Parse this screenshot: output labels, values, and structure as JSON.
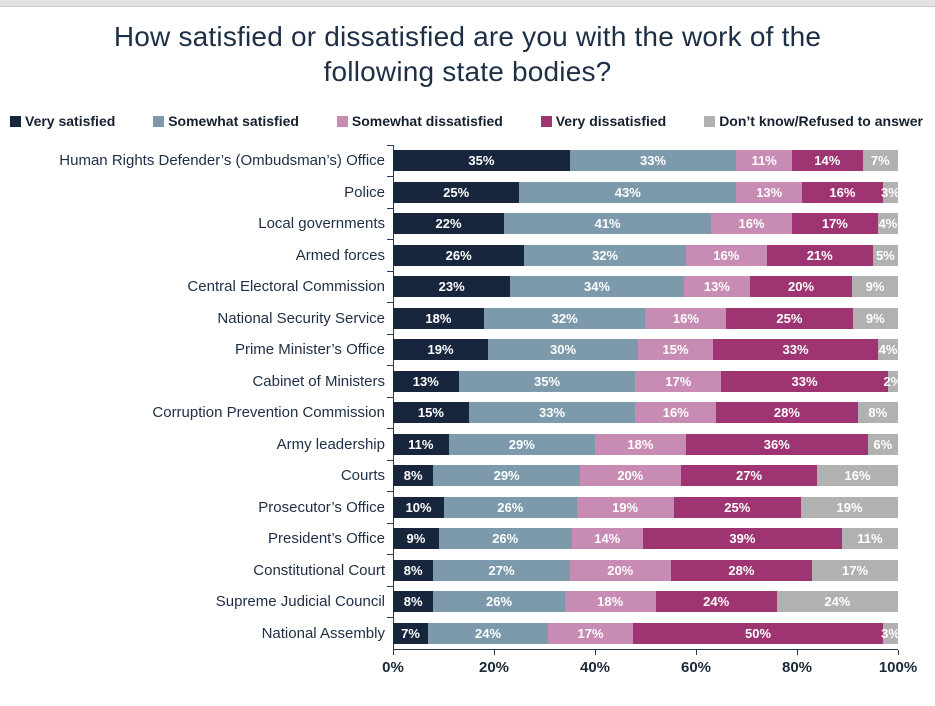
{
  "header": {
    "title_line1": "How satisfied or dissatisfied are you with the work of the",
    "title_line2": "following state bodies?"
  },
  "chart_data": {
    "type": "bar",
    "subtype": "horizontal-stacked",
    "title": "How satisfied or dissatisfied are you with the work of the following state bodies?",
    "value_suffix": "%",
    "xlim": [
      0,
      100
    ],
    "x_ticks": [
      "0%",
      "20%",
      "40%",
      "60%",
      "80%",
      "100%"
    ],
    "legend_position": "top",
    "grid": false,
    "axis_color": "#2a3950",
    "bar_label_color": "#ffffff",
    "categories": [
      "Human Rights Defender’s (Ombudsman’s) Office",
      "Police",
      "Local governments",
      "Armed forces",
      "Central Electoral Commission",
      "National Security Service",
      "Prime Minister’s Office",
      "Cabinet of Ministers",
      "Corruption Prevention Commission",
      "Army leadership",
      "Courts",
      "Prosecutor’s Office",
      "President’s Office",
      "Constitutional Court",
      "Supreme Judicial Council",
      "National Assembly"
    ],
    "series": [
      {
        "name": "Very satisfied",
        "color": "#17263d",
        "values": [
          35,
          25,
          22,
          26,
          23,
          18,
          19,
          13,
          15,
          11,
          8,
          10,
          9,
          8,
          8,
          7
        ]
      },
      {
        "name": "Somewhat satisfied",
        "color": "#7d9aad",
        "values": [
          33,
          43,
          41,
          32,
          34,
          32,
          30,
          35,
          33,
          29,
          29,
          26,
          26,
          27,
          26,
          24
        ]
      },
      {
        "name": "Somewhat dissatisfied",
        "color": "#c88cb4",
        "values": [
          11,
          13,
          16,
          16,
          13,
          16,
          15,
          17,
          16,
          18,
          20,
          19,
          14,
          20,
          18,
          17
        ]
      },
      {
        "name": "Very dissatisfied",
        "color": "#9e3572",
        "values": [
          14,
          16,
          17,
          21,
          20,
          25,
          33,
          33,
          28,
          36,
          27,
          25,
          39,
          28,
          24,
          50
        ]
      },
      {
        "name": "Don’t know/Refused to answer",
        "color": "#b2b1b1",
        "values": [
          7,
          3,
          4,
          5,
          9,
          9,
          4,
          2,
          8,
          6,
          16,
          19,
          11,
          17,
          24,
          3
        ]
      }
    ]
  }
}
